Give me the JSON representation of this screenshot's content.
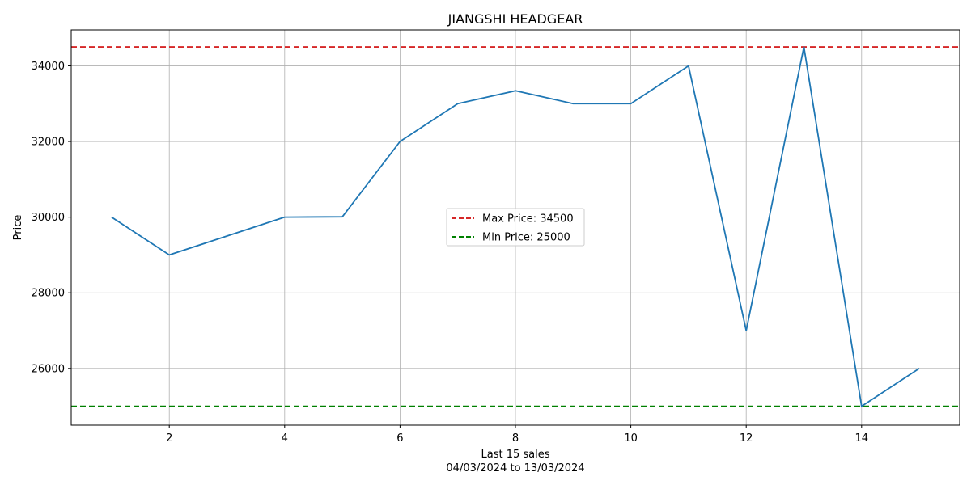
{
  "chart_data": {
    "type": "line",
    "title": "JIANGSHI HEADGEAR",
    "xlabel": "Last 15 sales",
    "xlabel_sub": "04/03/2024 to 13/03/2024",
    "ylabel": "Price",
    "xlim": [
      0.3,
      15.7
    ],
    "ylim": [
      24500,
      34950
    ],
    "xticks": [
      2,
      4,
      6,
      8,
      10,
      12,
      14
    ],
    "yticks": [
      26000,
      28000,
      30000,
      32000,
      34000
    ],
    "grid": true,
    "legend_position": "center",
    "series": [
      {
        "color": "#1f77b4",
        "x": [
          1,
          2,
          3,
          4,
          5,
          6,
          7,
          8,
          9,
          10,
          11,
          12,
          13,
          14,
          15
        ],
        "values": [
          30000,
          29000,
          29500,
          30000,
          30010,
          32000,
          33000,
          33340,
          33000,
          33000,
          34000,
          27000,
          34500,
          25000,
          26000
        ]
      }
    ],
    "reference_lines": [
      {
        "label": "Max Price: 34500",
        "value": 34500,
        "color": "#d62728",
        "style": "dashed"
      },
      {
        "label": "Min Price: 25000",
        "value": 25000,
        "color": "#008000",
        "style": "dashed"
      }
    ]
  }
}
